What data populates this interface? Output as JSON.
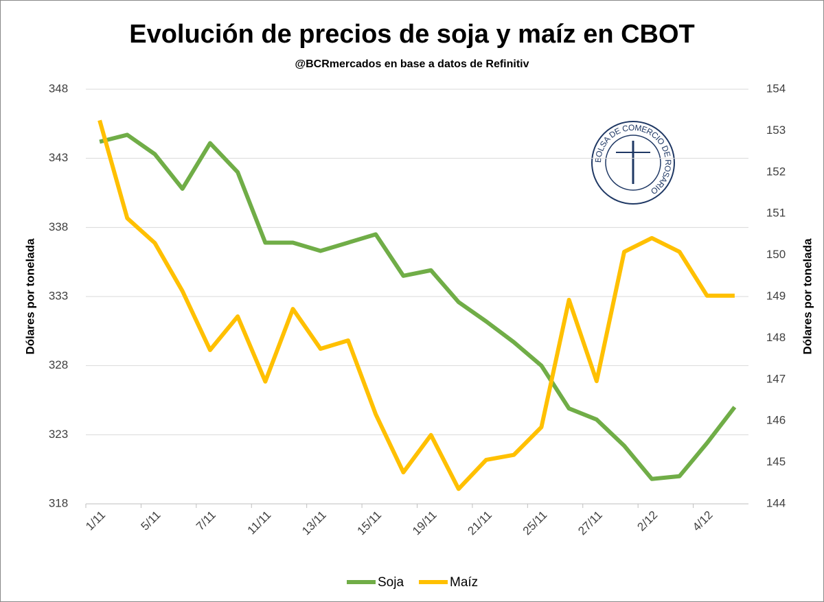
{
  "chart_data": {
    "type": "line",
    "title": "Evolución de precios de soja y maíz en CBOT",
    "subtitle": "@BCRmercados en base a datos de Refinitiv",
    "logo_text": "BOLSA DE COMERCIO DE ROSARIO",
    "ylabel": "Dólares por tonelada",
    "y2label": "Dólares por tonelada",
    "categories": [
      "1/11",
      null,
      "5/11",
      null,
      "7/11",
      null,
      "11/11",
      null,
      "13/11",
      null,
      "15/11",
      null,
      "19/11",
      null,
      "21/11",
      null,
      "25/11",
      null,
      "27/11",
      null,
      "2/12",
      null,
      "4/12",
      null
    ],
    "series": [
      {
        "name": "Soja",
        "color": "#70ad47",
        "axis": "y",
        "values": [
          344.2,
          344.7,
          343.3,
          340.8,
          344.1,
          342.0,
          336.9,
          336.9,
          336.3,
          336.9,
          337.5,
          334.5,
          334.9,
          332.6,
          331.2,
          329.7,
          328.0,
          324.9,
          324.1,
          322.2,
          319.8,
          320.0,
          322.4,
          325.0
        ]
      },
      {
        "name": "Maíz",
        "color": "#ffc000",
        "axis": "y2",
        "values": [
          153.25,
          150.89,
          150.29,
          149.13,
          147.71,
          148.52,
          146.95,
          148.7,
          147.74,
          147.94,
          146.16,
          144.76,
          145.66,
          144.36,
          145.06,
          145.18,
          145.85,
          148.92,
          146.96,
          150.08,
          150.41,
          150.08,
          149.02,
          149.02
        ]
      }
    ],
    "ylim": [
      318,
      348
    ],
    "yticks": [
      318,
      323,
      328,
      333,
      338,
      343,
      348
    ],
    "y2lim": [
      144,
      154
    ],
    "y2ticks": [
      144,
      145,
      146,
      147,
      148,
      149,
      150,
      151,
      152,
      153,
      154
    ],
    "grid": true,
    "legend": "bottom"
  }
}
